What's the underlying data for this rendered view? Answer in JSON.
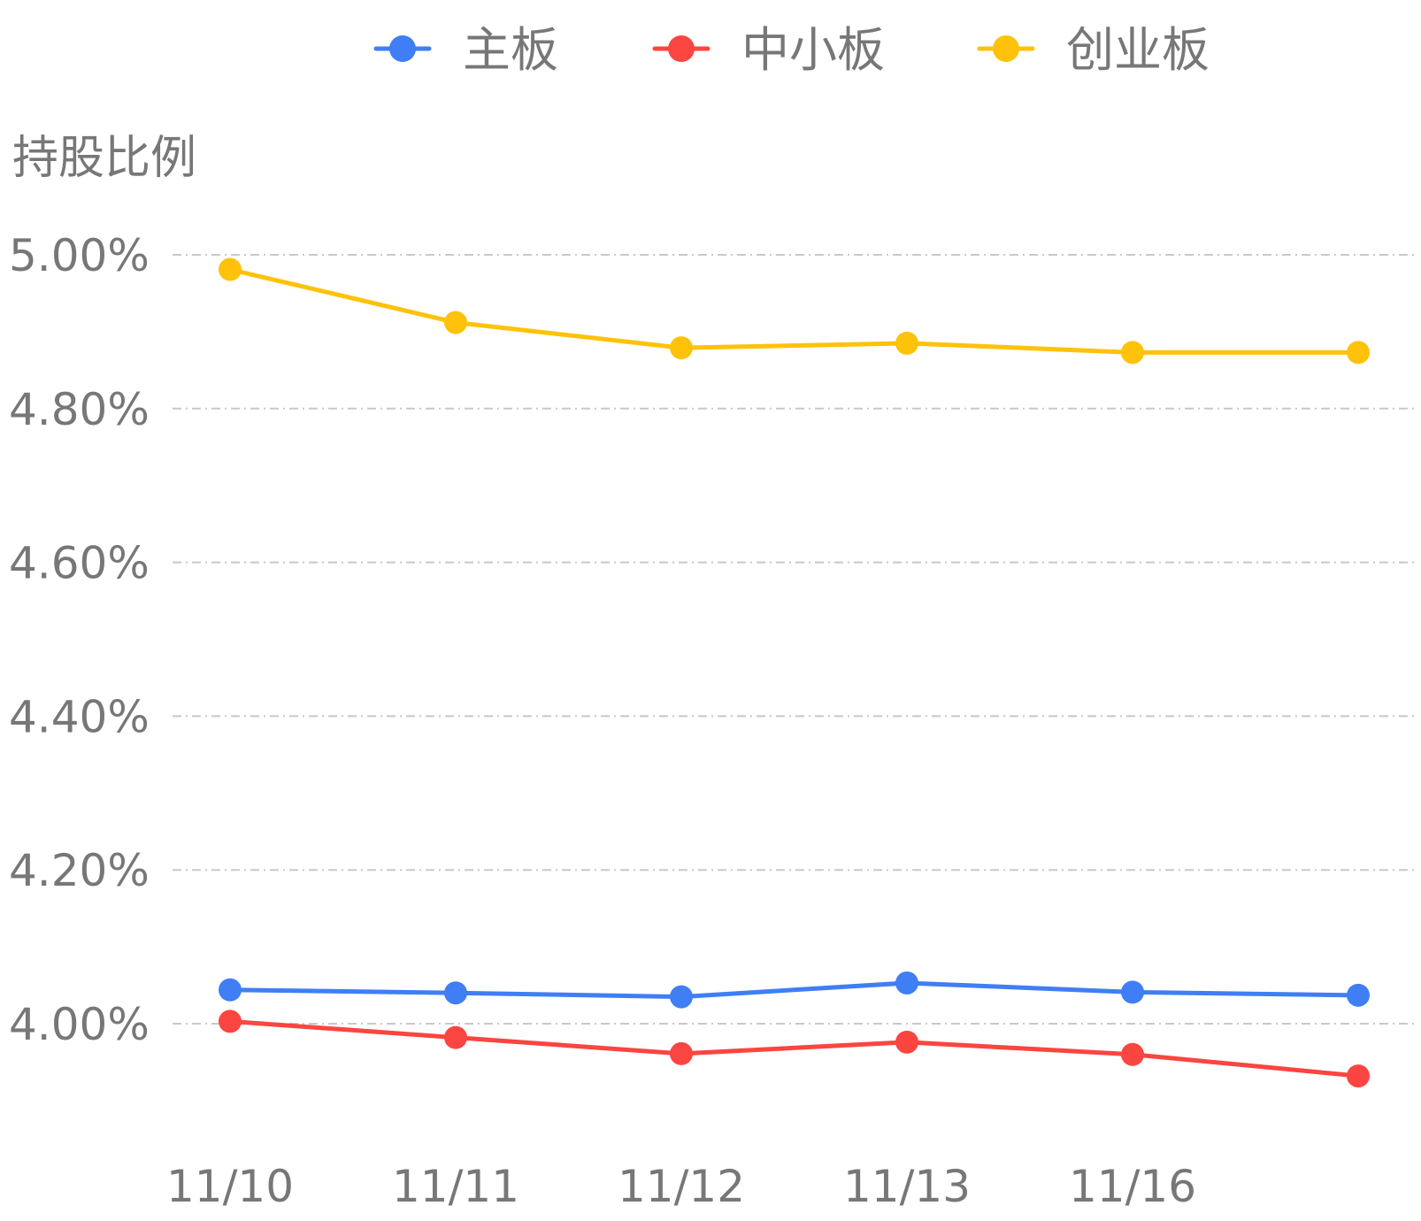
{
  "chart_data": {
    "type": "line",
    "ylabel": "持股比例",
    "x": [
      "11/10",
      "11/11",
      "11/12",
      "11/13",
      "11/16",
      ""
    ],
    "x_tick_labels": [
      "11/10",
      "11/11",
      "11/12",
      "11/13",
      "11/16"
    ],
    "y_ticks": [
      4.0,
      4.2,
      4.4,
      4.6,
      4.8,
      5.0
    ],
    "y_tick_labels": [
      "4.00%",
      "4.20%",
      "4.40%",
      "4.60%",
      "4.80%",
      "5.00%"
    ],
    "ylim": [
      3.85,
      5.0
    ],
    "grid": true,
    "legend_position": "top-center",
    "series": [
      {
        "name": "主板",
        "color": "#3f7ef5",
        "values": [
          4.044,
          4.04,
          4.035,
          4.053,
          4.041,
          4.037
        ]
      },
      {
        "name": "中小板",
        "color": "#fb4540",
        "values": [
          4.003,
          3.982,
          3.961,
          3.976,
          3.96,
          3.932
        ]
      },
      {
        "name": "创业板",
        "color": "#fec20a",
        "values": [
          4.981,
          4.912,
          4.879,
          4.885,
          4.873,
          4.873
        ]
      }
    ]
  }
}
